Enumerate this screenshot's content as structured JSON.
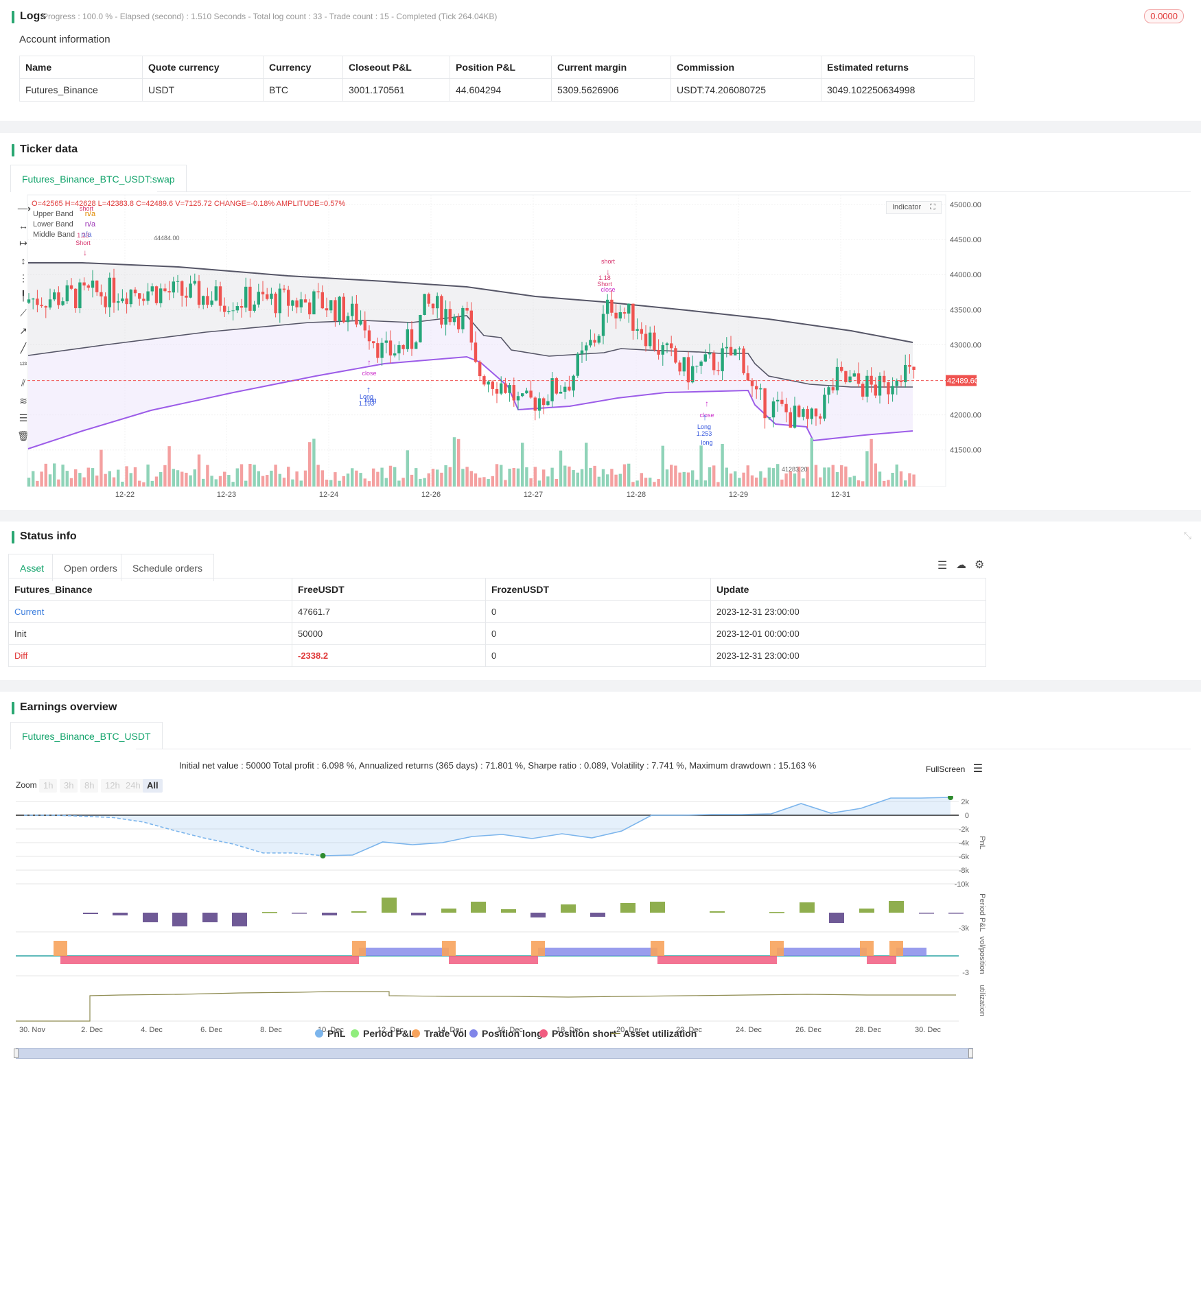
{
  "logs": {
    "title": "Logs",
    "status": "Progress : 100.0 % - Elapsed (second) : 1.510  Seconds - Total log count : 33 - Trade count : 15 - Completed (Tick 264.04KB)",
    "badge": "0.0000"
  },
  "account": {
    "title": "Account information",
    "headers": [
      "Name",
      "Quote currency",
      "Currency",
      "Closeout P&L",
      "Position P&L",
      "Current margin",
      "Commission",
      "Estimated returns"
    ],
    "row": [
      "Futures_Binance",
      "USDT",
      "BTC",
      "3001.170561",
      "44.604294",
      "5309.5626906",
      "USDT:74.206080725",
      "3049.102250634998"
    ]
  },
  "ticker": {
    "title": "Ticker data",
    "tab": "Futures_Binance_BTC_USDT:swap",
    "ohlc": {
      "o": "O=42565",
      "h": "H=42628",
      "l": "L=42383.8",
      "c": "C=42489.6",
      "v": "V=7125.72",
      "change": "CHANGE=-0.18%",
      "amplitude": "AMPLITUDE=0.57%"
    },
    "legend": [
      {
        "name": "Upper Band",
        "value": "n/a"
      },
      {
        "name": "Lower Band",
        "value": "n/a"
      },
      {
        "name": "Middle Band",
        "value": "n/a"
      }
    ],
    "indicator_btn": "Indicator",
    "price_ticks": [
      "45000.00",
      "44500.00",
      "44000.00",
      "43500.00",
      "43000.00",
      "42000.00",
      "41500.00"
    ],
    "current_price": "42489.60",
    "high_label": "44484.00",
    "low_label": "41283.20",
    "date_ticks": [
      "12-22",
      "12-23",
      "12-24",
      "12-26",
      "12-27",
      "12-28",
      "12-29",
      "12-31"
    ],
    "signals": {
      "short1": "short",
      "short1_b": "1.23",
      "short1_c": "Short",
      "short2": "short",
      "short2_b": "1.18",
      "short2_c": "Short",
      "close2": "close",
      "close1": "close",
      "long1": "Long",
      "long1_b": "1.193",
      "long1_c": "long",
      "close3": "close",
      "long2": "Long",
      "long2_b": "1.253",
      "long2_c": "long"
    }
  },
  "status": {
    "title": "Status info",
    "tabs": [
      "Asset",
      "Open orders",
      "Schedule orders"
    ],
    "headers": [
      "Futures_Binance",
      "FreeUSDT",
      "FrozenUSDT",
      "Update"
    ],
    "rows": [
      [
        "Current",
        "47661.7",
        "0",
        "2023-12-31 23:00:00"
      ],
      [
        "Init",
        "50000",
        "0",
        "2023-12-01 00:00:00"
      ],
      [
        "Diff",
        "-2338.2",
        "0",
        "2023-12-31 23:00:00"
      ]
    ]
  },
  "earnings": {
    "title": "Earnings overview",
    "tab": "Futures_Binance_BTC_USDT",
    "summary": "Initial net value : 50000 Total profit : 6.098 %, Annualized returns (365 days) : 71.801 %, Sharpe ratio : 0.089, Volatility : 7.741 %, Maximum drawdown : 15.163 %",
    "fullscreen": "FullScreen",
    "zoom_label": "Zoom",
    "zoom_buttons": [
      "1h",
      "3h",
      "8h",
      "12h",
      "24h",
      "All"
    ],
    "pnl_axis": [
      "2k",
      "0",
      "-2k",
      "-4k",
      "-6k",
      "-8k",
      "-10k"
    ],
    "axis_titles": [
      "PnL",
      "Period P&L",
      "vol/position",
      "utilization"
    ],
    "period_axis": "-3k",
    "vol_axis": "-3",
    "x_ticks": [
      "30. Nov",
      "2. Dec",
      "4. Dec",
      "6. Dec",
      "8. Dec",
      "10. Dec",
      "12. Dec",
      "14. Dec",
      "16. Dec",
      "18. Dec",
      "20. Dec",
      "22. Dec",
      "24. Dec",
      "26. Dec",
      "28. Dec",
      "30. Dec"
    ],
    "legend": [
      {
        "name": "PnL",
        "color": "#7cb5ec"
      },
      {
        "name": "Period P&L",
        "color": "#90ed7d"
      },
      {
        "name": "Trade Vol",
        "color": "#f7a35c"
      },
      {
        "name": "Position long",
        "color": "#8085e9"
      },
      {
        "name": "Position short",
        "color": "#f15c80"
      },
      {
        "name": "Asset utilization",
        "color": "#8d8a4f"
      }
    ]
  },
  "chart_data": [
    {
      "type": "line",
      "title": "",
      "x": [
        "30. Nov",
        "1. Dec",
        "2. Dec",
        "3. Dec",
        "4. Dec",
        "5. Dec",
        "6. Dec",
        "7. Dec",
        "8. Dec",
        "9. Dec",
        "10. Dec",
        "11. Dec",
        "12. Dec",
        "13. Dec",
        "14. Dec",
        "15. Dec",
        "16. Dec",
        "17. Dec",
        "18. Dec",
        "19. Dec",
        "20. Dec",
        "21. Dec",
        "22. Dec",
        "23. Dec",
        "24. Dec",
        "25. Dec",
        "26. Dec",
        "27. Dec",
        "28. Dec",
        "29. Dec",
        "30. Dec",
        "31. Dec"
      ],
      "series": [
        {
          "name": "PnL",
          "values": [
            0,
            0,
            -150,
            -350,
            -1000,
            -2200,
            -3300,
            -4200,
            -5500,
            -5500,
            -5900,
            -5800,
            -3900,
            -4300,
            -4000,
            -3100,
            -2800,
            -3400,
            -2700,
            -3300,
            -2300,
            0,
            0,
            100,
            100,
            200,
            1700,
            300,
            1000,
            2500,
            2500,
            2600
          ]
        }
      ],
      "ylim": [
        -10000,
        2500
      ]
    }
  ]
}
